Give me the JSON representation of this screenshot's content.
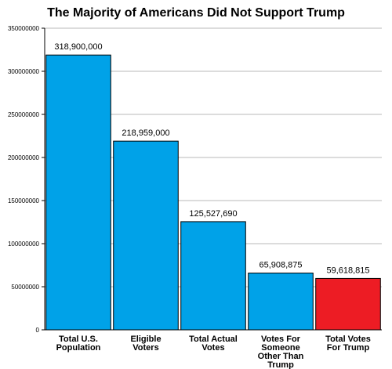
{
  "chart_data": {
    "type": "bar",
    "title": "The Majority of Americans Did Not Support Trump",
    "xlabel": "",
    "ylabel": "",
    "ylim": [
      0,
      350000000
    ],
    "yticks": [
      "0",
      "50000000",
      "100000000",
      "150000000",
      "200000000",
      "250000000",
      "300000000",
      "350000000"
    ],
    "grid": true,
    "categories": [
      [
        "Total U.S.",
        "Population"
      ],
      [
        "Eligible",
        "Voters"
      ],
      [
        "Total Actual",
        "Votes"
      ],
      [
        "Votes For",
        "Someone",
        "Other Than",
        "Trump"
      ],
      [
        "Total Votes",
        "For Trump"
      ]
    ],
    "values": [
      318900000,
      218959000,
      125527690,
      65908875,
      59618815
    ],
    "data_labels": [
      "318,900,000",
      "218,959,000",
      "125,527,690",
      "65,908,875",
      "59,618,815"
    ],
    "colors": [
      "#00a2e8",
      "#00a2e8",
      "#00a2e8",
      "#00a2e8",
      "#ed1c24"
    ]
  }
}
